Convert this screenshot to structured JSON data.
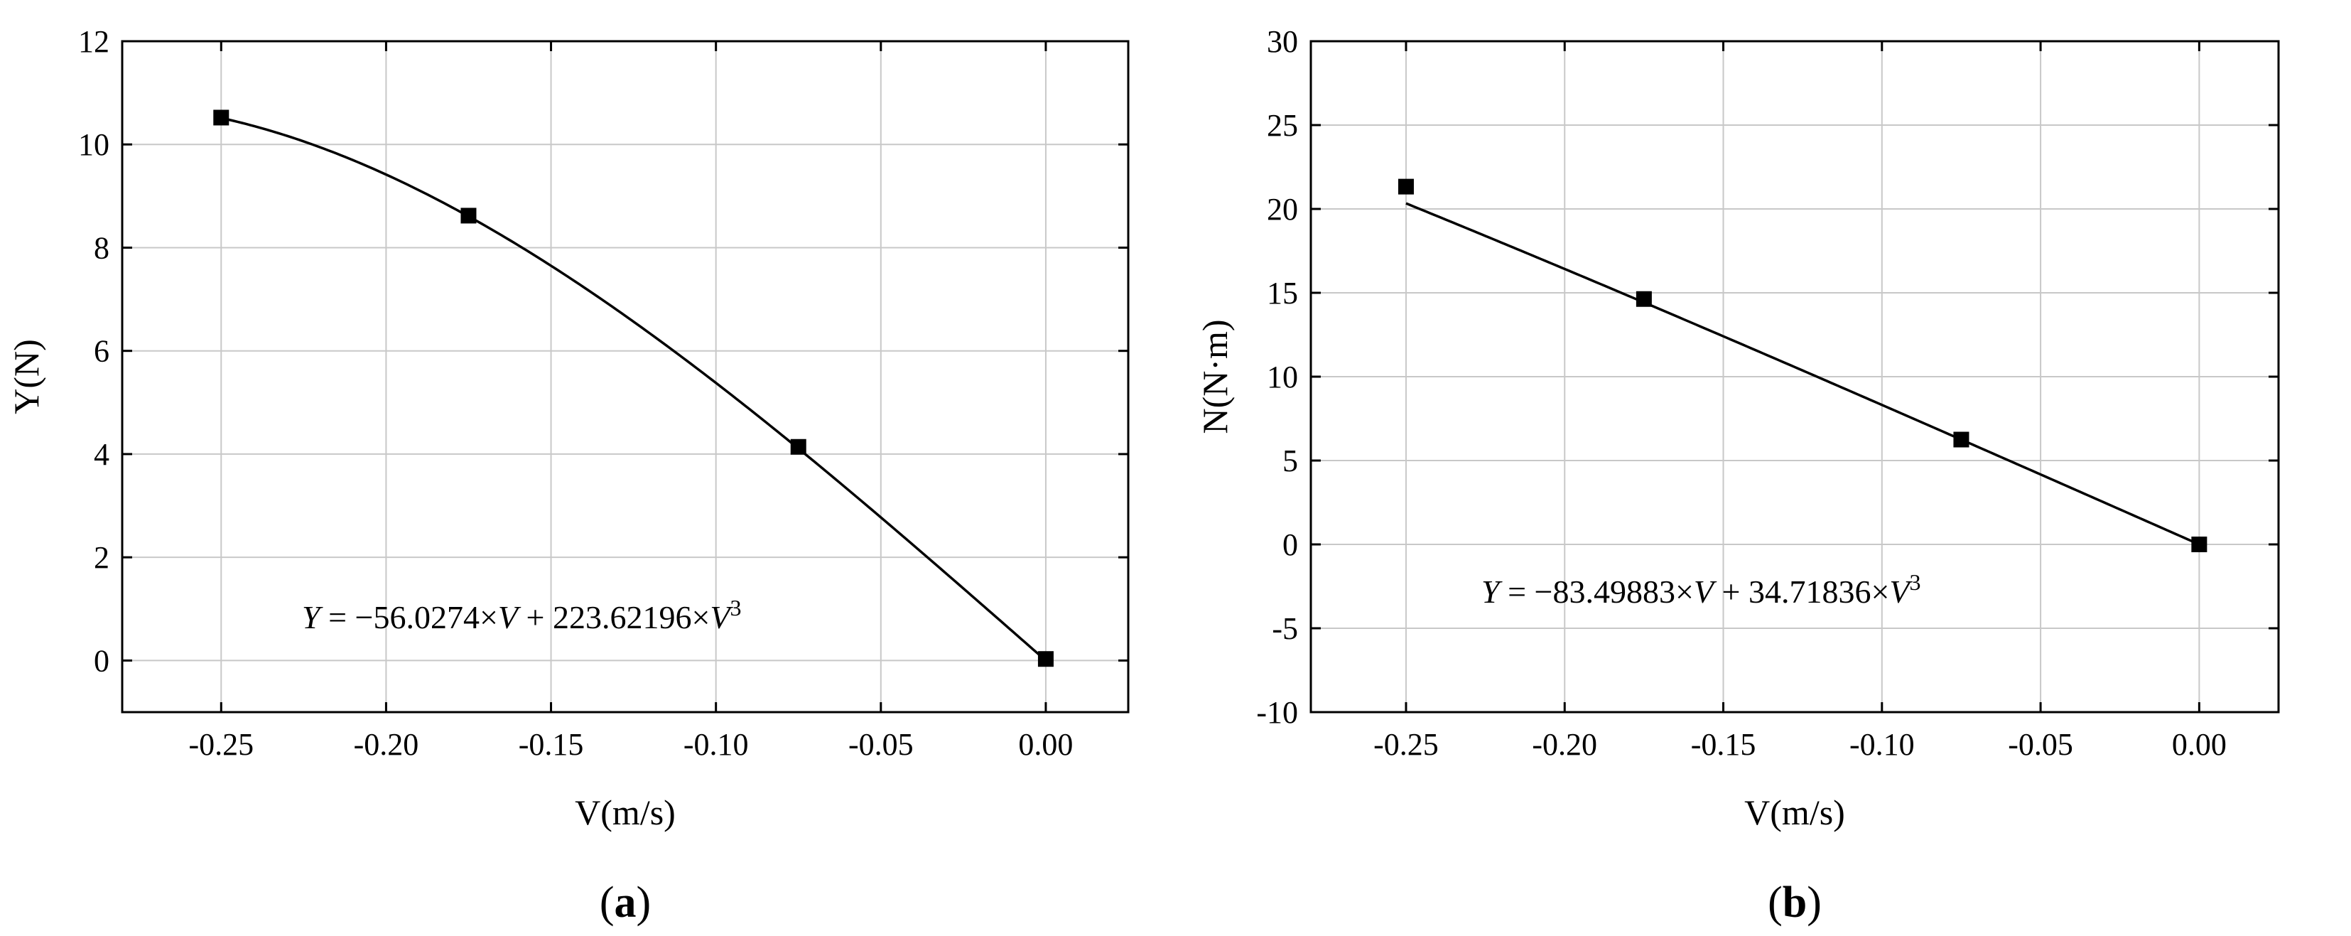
{
  "chart_data": [
    {
      "panel": "(a)",
      "panel_letter": "a",
      "type": "line",
      "xlabel": "V(m/s)",
      "ylabel": "Y(N)",
      "xlim": [
        -0.28,
        0.025
      ],
      "ylim": [
        -1,
        12
      ],
      "xticks": [
        -0.25,
        -0.2,
        -0.15,
        -0.1,
        -0.05,
        0.0
      ],
      "xtick_labels": [
        "-0.25",
        "-0.20",
        "-0.15",
        "-0.10",
        "-0.05",
        "0.00"
      ],
      "yticks": [
        0,
        2,
        4,
        6,
        8,
        10,
        12
      ],
      "ytick_labels": [
        "0",
        "2",
        "4",
        "6",
        "8",
        "10",
        "12"
      ],
      "grid": true,
      "series": [
        {
          "x": [
            -0.25,
            -0.175,
            -0.075,
            0.0
          ],
          "y": [
            10.52,
            8.62,
            4.14,
            0.03
          ],
          "marker": "square",
          "fit": {
            "a": -56.0274,
            "b": 223.62196
          }
        }
      ],
      "annotation": {
        "parts": [
          "Y",
          " = −56.0274×",
          "V",
          " + 223.62196×",
          "V",
          "3"
        ]
      }
    },
    {
      "panel": "(b)",
      "panel_letter": "b",
      "type": "line",
      "xlabel": "V(m/s)",
      "ylabel": "N(N·m)",
      "xlim": [
        -0.28,
        0.025
      ],
      "ylim": [
        -10,
        30
      ],
      "xticks": [
        -0.25,
        -0.2,
        -0.15,
        -0.1,
        -0.05,
        0.0
      ],
      "xtick_labels": [
        "-0.25",
        "-0.20",
        "-0.15",
        "-0.10",
        "-0.05",
        "0.00"
      ],
      "yticks": [
        -10,
        -5,
        0,
        5,
        10,
        15,
        20,
        25,
        30
      ],
      "ytick_labels": [
        "-10",
        "-5",
        "0",
        "5",
        "10",
        "15",
        "20",
        "25",
        "30"
      ],
      "grid": true,
      "series": [
        {
          "x": [
            -0.25,
            -0.175,
            -0.075,
            0.0
          ],
          "y": [
            21.33,
            14.63,
            6.25,
            0.0
          ],
          "marker": "square",
          "fit": {
            "a": -83.49883,
            "b": 34.71836
          }
        }
      ],
      "annotation": {
        "parts": [
          "Y",
          " = −83.49883×",
          "V",
          " + 34.71836×",
          "V",
          "3"
        ]
      }
    }
  ]
}
